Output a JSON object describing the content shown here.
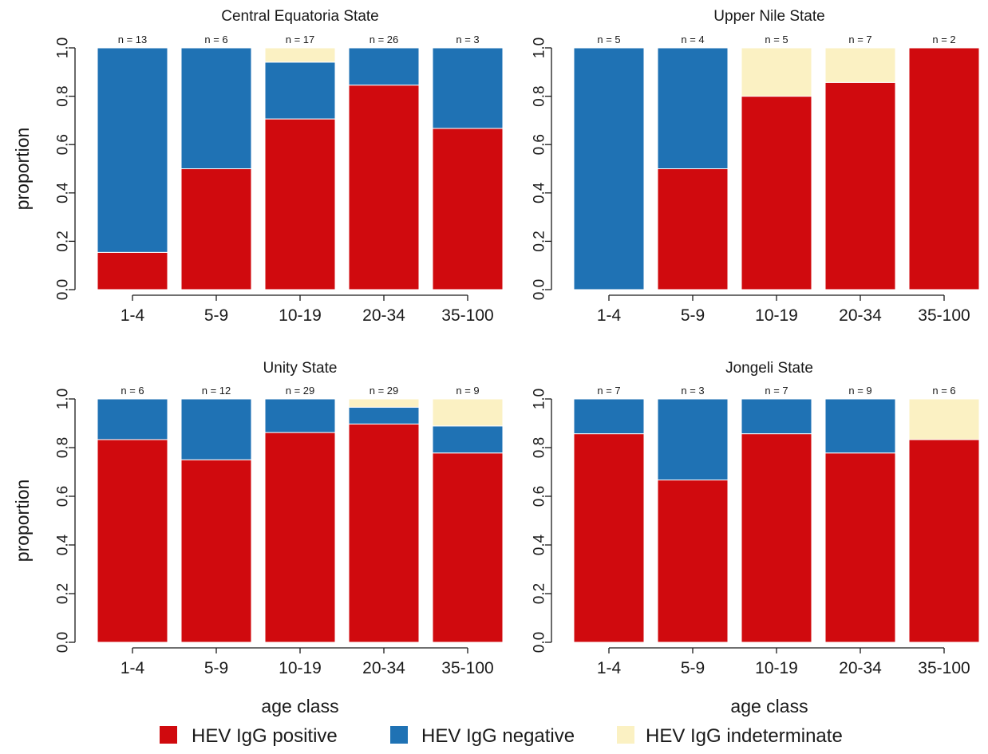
{
  "colors": {
    "positive": "#D00A0E",
    "negative": "#1F72B4",
    "indeterminate": "#FBF1C3"
  },
  "legend": [
    {
      "key": "positive",
      "label": "HEV IgG positive"
    },
    {
      "key": "negative",
      "label": "HEV IgG negative"
    },
    {
      "key": "indeterminate",
      "label": "HEV IgG indeterminate"
    }
  ],
  "chart_data": [
    {
      "type": "bar",
      "stacked": true,
      "title": "Central Equatoria State",
      "ylabel": "proportion",
      "xlabel": "age class",
      "ylim": [
        0,
        1
      ],
      "yticks": [
        "0.0",
        "0.2",
        "0.4",
        "0.6",
        "0.8",
        "1.0"
      ],
      "categories": [
        "1-4",
        "5-9",
        "10-19",
        "20-34",
        "35-100"
      ],
      "n_labels": [
        "n = 13",
        "n = 6",
        "n = 17",
        "n = 26",
        "n = 3"
      ],
      "series": [
        {
          "name": "HEV IgG positive",
          "values": [
            0.154,
            0.5,
            0.706,
            0.846,
            0.667
          ]
        },
        {
          "name": "HEV IgG negative",
          "values": [
            0.846,
            0.5,
            0.235,
            0.154,
            0.333
          ]
        },
        {
          "name": "HEV IgG indeterminate",
          "values": [
            0,
            0,
            0.059,
            0,
            0
          ]
        }
      ]
    },
    {
      "type": "bar",
      "stacked": true,
      "title": "Upper Nile State",
      "ylabel": "proportion",
      "xlabel": "age class",
      "ylim": [
        0,
        1
      ],
      "yticks": [
        "0.0",
        "0.2",
        "0.4",
        "0.6",
        "0.8",
        "1.0"
      ],
      "categories": [
        "1-4",
        "5-9",
        "10-19",
        "20-34",
        "35-100"
      ],
      "n_labels": [
        "n = 5",
        "n = 4",
        "n = 5",
        "n = 7",
        "n = 2"
      ],
      "series": [
        {
          "name": "HEV IgG positive",
          "values": [
            0,
            0.5,
            0.8,
            0.857,
            1.0
          ]
        },
        {
          "name": "HEV IgG negative",
          "values": [
            1.0,
            0.5,
            0,
            0,
            0
          ]
        },
        {
          "name": "HEV IgG indeterminate",
          "values": [
            0,
            0,
            0.2,
            0.143,
            0
          ]
        }
      ]
    },
    {
      "type": "bar",
      "stacked": true,
      "title": "Unity State",
      "ylabel": "proportion",
      "xlabel": "age class",
      "ylim": [
        0,
        1
      ],
      "yticks": [
        "0.0",
        "0.2",
        "0.4",
        "0.6",
        "0.8",
        "1.0"
      ],
      "categories": [
        "1-4",
        "5-9",
        "10-19",
        "20-34",
        "35-100"
      ],
      "n_labels": [
        "n = 6",
        "n = 12",
        "n = 29",
        "n = 29",
        "n = 9"
      ],
      "series": [
        {
          "name": "HEV IgG positive",
          "values": [
            0.833,
            0.75,
            0.862,
            0.897,
            0.778
          ]
        },
        {
          "name": "HEV IgG negative",
          "values": [
            0.167,
            0.25,
            0.138,
            0.069,
            0.111
          ]
        },
        {
          "name": "HEV IgG indeterminate",
          "values": [
            0,
            0,
            0,
            0.034,
            0.111
          ]
        }
      ]
    },
    {
      "type": "bar",
      "stacked": true,
      "title": "Jongeli State",
      "ylabel": "proportion",
      "xlabel": "age class",
      "ylim": [
        0,
        1
      ],
      "yticks": [
        "0.0",
        "0.2",
        "0.4",
        "0.6",
        "0.8",
        "1.0"
      ],
      "categories": [
        "1-4",
        "5-9",
        "10-19",
        "20-34",
        "35-100"
      ],
      "n_labels": [
        "n = 7",
        "n = 3",
        "n = 7",
        "n = 9",
        "n = 6"
      ],
      "series": [
        {
          "name": "HEV IgG positive",
          "values": [
            0.857,
            0.667,
            0.857,
            0.778,
            0.833
          ]
        },
        {
          "name": "HEV IgG negative",
          "values": [
            0.143,
            0.333,
            0.143,
            0.222,
            0
          ]
        },
        {
          "name": "HEV IgG indeterminate",
          "values": [
            0,
            0,
            0,
            0,
            0.167
          ]
        }
      ]
    }
  ]
}
